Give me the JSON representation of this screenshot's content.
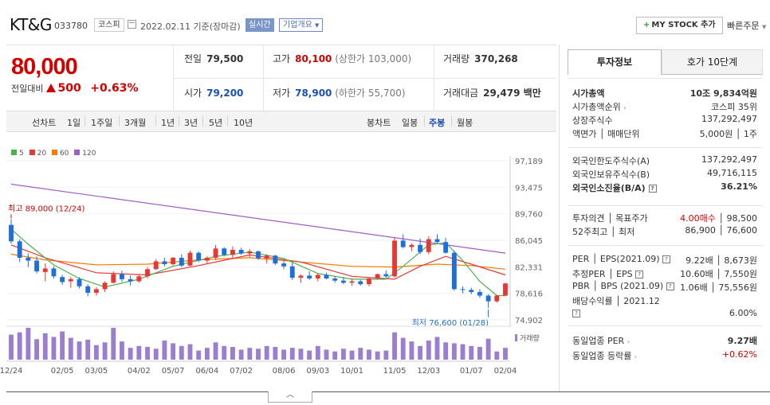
{
  "header": {
    "company": "KT&G",
    "code": "033780",
    "market": "코스피",
    "date": "2022.02.11 기준(장마감)",
    "realtime_label": "실시간",
    "overview_label": "기업개요",
    "mystock_label": "MY STOCK 추가",
    "quick_order_label": "빠른주문"
  },
  "price": {
    "current": "80,000",
    "change_label": "전일대비",
    "change": "500",
    "change_pct": "+0.63%"
  },
  "stats": {
    "prev_label": "전일",
    "prev": "79,500",
    "high_label": "고가",
    "high": "80,100",
    "high_limit": "(상한가 103,000)",
    "volume_label": "거래량",
    "volume": "370,268",
    "open_label": "시가",
    "open": "79,200",
    "low_label": "저가",
    "low": "78,900",
    "low_limit": "(하한가 55,700)",
    "amount_label": "거래대금",
    "amount": "29,479 백만"
  },
  "period_tabs": {
    "label": "선차트",
    "items": [
      "1일",
      "1주일",
      "3개월",
      "1년",
      "3년",
      "5년",
      "10년"
    ],
    "candle_label": "봉차트",
    "candle_items": [
      "일봉",
      "주봉",
      "월봉"
    ],
    "active_candle": "주봉"
  },
  "chart_data": {
    "type": "candlestick",
    "period": "weekly",
    "y_ticks": [
      "97,189",
      "93,475",
      "89,760",
      "86,045",
      "82,331",
      "78,616",
      "74,902"
    ],
    "ylim": [
      74902,
      97189
    ],
    "x_ticks": [
      "12/24",
      "02/05",
      "03/05",
      "04/02",
      "05/07",
      "06/04",
      "07/02",
      "08/06",
      "09/03",
      "10/01",
      "11/05",
      "12/03",
      "01/07",
      "02/04"
    ],
    "legend": [
      "5",
      "20",
      "60",
      "120"
    ],
    "legend_colors": [
      "#4caf50",
      "#e53935",
      "#f57c00",
      "#a05cc8"
    ],
    "high_annotation": "최고 89,000 (12/24)",
    "low_annotation": "최저 76,600 (01/28)",
    "volume_label": "거래량",
    "candles": [
      {
        "o": 88200,
        "h": 89000,
        "l": 85600,
        "c": 85900
      },
      {
        "o": 85900,
        "h": 86200,
        "l": 83000,
        "c": 83600
      },
      {
        "o": 83600,
        "h": 84200,
        "l": 82300,
        "c": 83200
      },
      {
        "o": 83200,
        "h": 83800,
        "l": 81400,
        "c": 81700
      },
      {
        "o": 81600,
        "h": 82800,
        "l": 80300,
        "c": 82100
      },
      {
        "o": 82100,
        "h": 82400,
        "l": 80700,
        "c": 81000
      },
      {
        "o": 80900,
        "h": 81200,
        "l": 79800,
        "c": 80200
      },
      {
        "o": 80300,
        "h": 80900,
        "l": 79400,
        "c": 80600
      },
      {
        "o": 80600,
        "h": 80900,
        "l": 79300,
        "c": 79600
      },
      {
        "o": 79600,
        "h": 79900,
        "l": 78200,
        "c": 78700
      },
      {
        "o": 78700,
        "h": 79500,
        "l": 78300,
        "c": 79200
      },
      {
        "o": 79200,
        "h": 80300,
        "l": 78800,
        "c": 80100
      },
      {
        "o": 80100,
        "h": 81700,
        "l": 80000,
        "c": 81300
      },
      {
        "o": 81300,
        "h": 81800,
        "l": 80200,
        "c": 80600
      },
      {
        "o": 80600,
        "h": 81100,
        "l": 79700,
        "c": 80300
      },
      {
        "o": 80300,
        "h": 81200,
        "l": 80100,
        "c": 81000
      },
      {
        "o": 81000,
        "h": 82300,
        "l": 80700,
        "c": 82000
      },
      {
        "o": 82000,
        "h": 83400,
        "l": 81900,
        "c": 83100
      },
      {
        "o": 83100,
        "h": 83600,
        "l": 82400,
        "c": 82700
      },
      {
        "o": 82700,
        "h": 83700,
        "l": 82500,
        "c": 83600
      },
      {
        "o": 83600,
        "h": 84100,
        "l": 82300,
        "c": 82500
      },
      {
        "o": 82500,
        "h": 84600,
        "l": 82400,
        "c": 84300
      },
      {
        "o": 84300,
        "h": 84500,
        "l": 83000,
        "c": 83200
      },
      {
        "o": 83200,
        "h": 83800,
        "l": 82800,
        "c": 83600
      },
      {
        "o": 83600,
        "h": 85400,
        "l": 83300,
        "c": 84900
      },
      {
        "o": 84900,
        "h": 85100,
        "l": 83800,
        "c": 84000
      },
      {
        "o": 84000,
        "h": 85200,
        "l": 83500,
        "c": 84700
      },
      {
        "o": 84700,
        "h": 85000,
        "l": 84000,
        "c": 84200
      },
      {
        "o": 84200,
        "h": 84800,
        "l": 83700,
        "c": 84500
      },
      {
        "o": 84500,
        "h": 84600,
        "l": 83300,
        "c": 83500
      },
      {
        "o": 83500,
        "h": 84100,
        "l": 82800,
        "c": 83900
      },
      {
        "o": 83900,
        "h": 84000,
        "l": 82600,
        "c": 82800
      },
      {
        "o": 82800,
        "h": 83200,
        "l": 82000,
        "c": 82400
      },
      {
        "o": 82400,
        "h": 82900,
        "l": 80500,
        "c": 80800
      },
      {
        "o": 80800,
        "h": 81300,
        "l": 80100,
        "c": 81100
      },
      {
        "o": 81100,
        "h": 81700,
        "l": 80500,
        "c": 80700
      },
      {
        "o": 80700,
        "h": 81400,
        "l": 80300,
        "c": 81200
      },
      {
        "o": 81200,
        "h": 81500,
        "l": 80600,
        "c": 80700
      },
      {
        "o": 80700,
        "h": 81000,
        "l": 80100,
        "c": 80400
      },
      {
        "o": 80400,
        "h": 80900,
        "l": 79900,
        "c": 80100
      },
      {
        "o": 80100,
        "h": 80600,
        "l": 79700,
        "c": 80300
      },
      {
        "o": 80300,
        "h": 80500,
        "l": 79700,
        "c": 79900
      },
      {
        "o": 79900,
        "h": 80800,
        "l": 79600,
        "c": 80700
      },
      {
        "o": 80700,
        "h": 81400,
        "l": 80500,
        "c": 81300
      },
      {
        "o": 81300,
        "h": 81800,
        "l": 80800,
        "c": 81000
      },
      {
        "o": 81000,
        "h": 86500,
        "l": 80800,
        "c": 86000
      },
      {
        "o": 86000,
        "h": 86900,
        "l": 84900,
        "c": 85100
      },
      {
        "o": 85100,
        "h": 85600,
        "l": 84500,
        "c": 85400
      },
      {
        "o": 85400,
        "h": 86300,
        "l": 84100,
        "c": 84400
      },
      {
        "o": 84400,
        "h": 86600,
        "l": 84100,
        "c": 86200
      },
      {
        "o": 86200,
        "h": 86900,
        "l": 85600,
        "c": 85800
      },
      {
        "o": 85800,
        "h": 86400,
        "l": 84200,
        "c": 84300
      },
      {
        "o": 84300,
        "h": 84600,
        "l": 79000,
        "c": 79200
      },
      {
        "o": 79200,
        "h": 79600,
        "l": 78600,
        "c": 79100
      },
      {
        "o": 79100,
        "h": 79400,
        "l": 78500,
        "c": 78800
      },
      {
        "o": 78800,
        "h": 79200,
        "l": 78000,
        "c": 78300
      },
      {
        "o": 78300,
        "h": 78500,
        "l": 76600,
        "c": 77500
      },
      {
        "o": 77500,
        "h": 78400,
        "l": 77300,
        "c": 78300
      },
      {
        "o": 78300,
        "h": 80100,
        "l": 78200,
        "c": 80000
      }
    ],
    "volume": [
      55,
      60,
      70,
      45,
      58,
      50,
      62,
      48,
      40,
      44,
      32,
      38,
      70,
      40,
      26,
      30,
      28,
      24,
      42,
      36,
      30,
      34,
      20,
      26,
      38,
      30,
      28,
      22,
      26,
      24,
      30,
      28,
      22,
      26,
      24,
      20,
      30,
      22,
      18,
      24,
      20,
      26,
      22,
      18,
      20,
      60,
      48,
      40,
      30,
      42,
      50,
      38,
      36,
      34,
      30,
      28,
      46,
      18,
      26
    ],
    "ma120": [
      [
        0,
        93900
      ],
      [
        58,
        84250
      ]
    ],
    "ma60": [
      [
        0,
        84100
      ],
      [
        4,
        83300
      ],
      [
        10,
        82600
      ],
      [
        16,
        82700
      ],
      [
        22,
        83300
      ],
      [
        28,
        83600
      ],
      [
        34,
        83000
      ],
      [
        40,
        82400
      ],
      [
        45,
        82300
      ],
      [
        50,
        82700
      ],
      [
        54,
        82500
      ],
      [
        58,
        82000
      ]
    ],
    "ma20": [
      [
        0,
        85400
      ],
      [
        4,
        83600
      ],
      [
        10,
        81500
      ],
      [
        16,
        81200
      ],
      [
        22,
        82500
      ],
      [
        28,
        84000
      ],
      [
        34,
        83000
      ],
      [
        40,
        81000
      ],
      [
        45,
        80600
      ],
      [
        48,
        82400
      ],
      [
        51,
        83800
      ],
      [
        54,
        82700
      ],
      [
        58,
        81200
      ]
    ],
    "ma5": [
      [
        0,
        87600
      ],
      [
        2,
        85500
      ],
      [
        5,
        82600
      ],
      [
        8,
        80700
      ],
      [
        11,
        79500
      ],
      [
        15,
        80600
      ],
      [
        19,
        82400
      ],
      [
        24,
        83800
      ],
      [
        28,
        84400
      ],
      [
        32,
        83500
      ],
      [
        36,
        81400
      ],
      [
        40,
        80600
      ],
      [
        44,
        80600
      ],
      [
        46,
        82400
      ],
      [
        49,
        85400
      ],
      [
        51,
        85700
      ],
      [
        53,
        83200
      ],
      [
        55,
        80300
      ],
      [
        57,
        78300
      ],
      [
        58,
        78300
      ]
    ]
  },
  "right_panel": {
    "tab_active": "투자정보",
    "tab_inactive": "호가 10단계",
    "rows": [
      {
        "label": "시가총액",
        "value": "10조 9,834억원"
      },
      {
        "label": "시가총액순위",
        "value": "코스피 35위"
      },
      {
        "label": "상장주식수",
        "value": "137,292,497"
      },
      {
        "label": "액면가 │ 매매단위",
        "value": "5,000원 │ 1주"
      },
      {
        "label": "외국인한도주식수(A)",
        "value": "137,292,497"
      },
      {
        "label": "외국인보유주식수(B)",
        "value": "49,716,115"
      },
      {
        "label": "외국인소진율(B/A)",
        "value": "36.21%"
      },
      {
        "label": "투자의견 │ 목표주가",
        "value_red": "4.00매수",
        "value": "│ 98,500"
      },
      {
        "label": "52주최고 │ 최저",
        "value": "86,900 │ 76,600"
      },
      {
        "label": "PER │ EPS(2021.09)",
        "value": "9.22배 │ 8,673원"
      },
      {
        "label": "추정PER │ EPS",
        "value": "10.60배 │ 7,550원"
      },
      {
        "label": "PBR │ BPS (2021.09)",
        "value": "1.06배 │ 75,556원"
      },
      {
        "label": "배당수익률 │ 2021.12",
        "value": "6.00%"
      },
      {
        "label": "동일업종 PER",
        "value": "9.27배"
      },
      {
        "label": "동일업종 등락률",
        "value": "+0.62%"
      }
    ]
  }
}
